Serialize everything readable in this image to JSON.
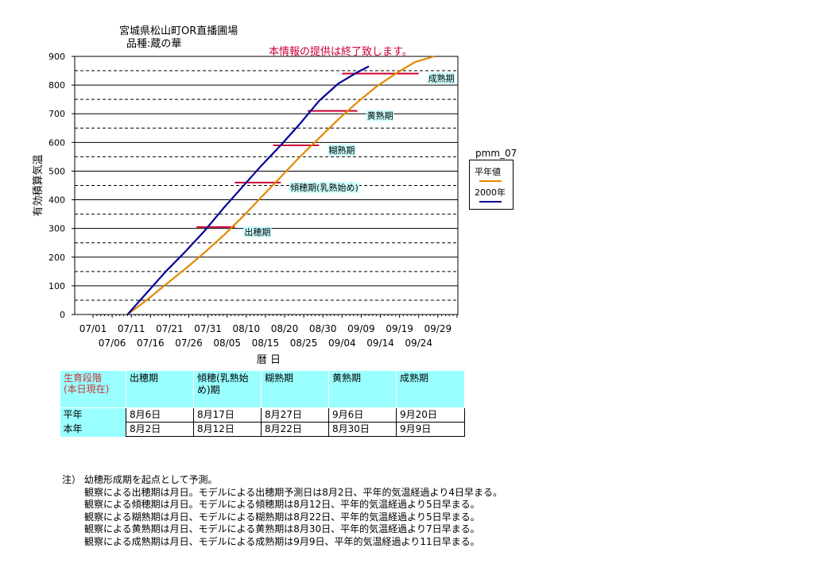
{
  "title_lines": [
    "宮城県松山町OR直播圃場",
    "品種:蔵の華"
  ],
  "notice": "本情報の提供は終了致します。",
  "chart_data": {
    "type": "line",
    "ylabel": "有効積算気温",
    "xlabel": "暦 日",
    "ylim": [
      0,
      900
    ],
    "yticks": [
      0,
      100,
      200,
      300,
      400,
      500,
      600,
      700,
      800,
      900
    ],
    "x_start_date": "07/01",
    "x_range_days": [
      0,
      95
    ],
    "xtick_labels_top": [
      "07/01",
      "07/11",
      "07/21",
      "07/31",
      "08/10",
      "08/20",
      "08/30",
      "09/09",
      "09/19",
      "09/29"
    ],
    "xtick_labels_bottom": [
      "07/06",
      "07/16",
      "07/26",
      "08/05",
      "08/15",
      "08/25",
      "09/04",
      "09/14",
      "09/24"
    ],
    "grid": "solid at 100s, dashed at 50s",
    "legend_title": "pmm_07",
    "legend_position": "right",
    "series": [
      {
        "name": "平年値",
        "color": "#e08a00",
        "x": [
          "07/10",
          "07/15",
          "07/20",
          "07/25",
          "07/30",
          "08/04",
          "08/09",
          "08/14",
          "08/19",
          "08/24",
          "08/29",
          "09/03",
          "09/08",
          "09/13",
          "09/18",
          "09/23",
          "09/28"
        ],
        "y": [
          0,
          50,
          105,
          158,
          215,
          275,
          340,
          410,
          480,
          550,
          615,
          680,
          740,
          795,
          840,
          880,
          900
        ]
      },
      {
        "name": "2000年",
        "color": "#000099",
        "x": [
          "07/10",
          "07/15",
          "07/20",
          "07/25",
          "07/30",
          "08/04",
          "08/09",
          "08/14",
          "08/19",
          "08/24",
          "08/29",
          "09/03",
          "09/08",
          "09/11"
        ],
        "y": [
          0,
          75,
          150,
          218,
          290,
          370,
          445,
          520,
          590,
          665,
          745,
          805,
          845,
          865
        ]
      }
    ],
    "stage_markers": [
      {
        "label": "出穂期",
        "y": 305,
        "x_from": "07/28",
        "x_to": "08/07"
      },
      {
        "label": "傾穂期(乳熟始め)",
        "y": 460,
        "x_from": "08/07",
        "x_to": "08/19"
      },
      {
        "label": "糊熟期",
        "y": 590,
        "x_from": "08/17",
        "x_to": "08/29"
      },
      {
        "label": "黄熟期",
        "y": 710,
        "x_from": "08/26",
        "x_to": "09/08"
      },
      {
        "label": "成熟期",
        "y": 840,
        "x_from": "09/04",
        "x_to": "09/24"
      }
    ],
    "marker_color": "#cc0033"
  },
  "stage_table": {
    "corner_line1": "生育段階",
    "corner_line2": "(本日現在)",
    "stages": [
      "出穂期",
      "傾穂(乳熟始め)期",
      "糊熟期",
      "黄熟期",
      "成熟期"
    ],
    "rows": [
      {
        "label": "平年",
        "values": [
          "8月6日",
          "8月17日",
          "8月27日",
          "9月6日",
          "9月20日"
        ]
      },
      {
        "label": "本年",
        "values": [
          "8月2日",
          "8月12日",
          "8月22日",
          "8月30日",
          "9月9日"
        ]
      }
    ]
  },
  "notes": [
    "注） 幼穂形成期を起点として予測。",
    "観察による出穂期は月日。モデルによる出穂期予測日は8月2日、平年的気温経過より4日早まる。",
    "観察による傾穂期は月日。モデルによる傾穂期は8月12日、平年的気温経過より5日早まる。",
    "観察による糊熟期は月日、モデルによる糊熟期は8月22日、平年的気温経過より5日早まる。",
    "観察による黄熟期は月日、モデルによる黄熟期は8月30日、平年的気温経過より7日早まる。",
    "観察による成熟期は月日、モデルによる成熟期は9月9日、平年的気温経過より11日早まる。"
  ]
}
